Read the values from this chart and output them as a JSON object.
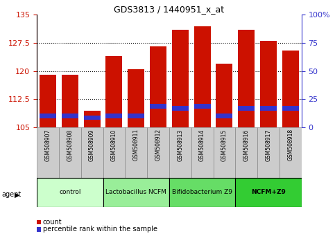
{
  "title": "GDS3813 / 1440951_x_at",
  "samples": [
    "GSM508907",
    "GSM508908",
    "GSM508909",
    "GSM508910",
    "GSM508911",
    "GSM508912",
    "GSM508913",
    "GSM508914",
    "GSM508915",
    "GSM508916",
    "GSM508917",
    "GSM508918"
  ],
  "count_values": [
    119.0,
    119.0,
    109.5,
    124.0,
    120.5,
    126.5,
    131.0,
    132.0,
    122.0,
    131.0,
    128.0,
    125.5
  ],
  "percentile_bottom": [
    107.5,
    107.5,
    107.0,
    107.5,
    107.5,
    110.0,
    109.5,
    110.0,
    107.5,
    109.5,
    109.5,
    109.5
  ],
  "percentile_height": [
    1.2,
    1.2,
    1.2,
    1.2,
    1.2,
    1.2,
    1.2,
    1.2,
    1.2,
    1.2,
    1.2,
    1.2
  ],
  "bar_base": 105,
  "ylim_left": [
    105,
    135
  ],
  "ylim_right": [
    0,
    100
  ],
  "yticks_left": [
    105,
    112.5,
    120,
    127.5,
    135
  ],
  "ytick_labels_left": [
    "105",
    "112.5",
    "120",
    "127.5",
    "135"
  ],
  "yticks_right": [
    0,
    25,
    50,
    75,
    100
  ],
  "ytick_labels_right": [
    "0",
    "25",
    "50",
    "75",
    "100%"
  ],
  "bar_color": "#cc1100",
  "blue_color": "#3333cc",
  "agent_groups": [
    {
      "label": "control",
      "start": 0,
      "end": 3,
      "color": "#ccffcc",
      "bold": false
    },
    {
      "label": "Lactobacillus NCFM",
      "start": 3,
      "end": 6,
      "color": "#99ee99",
      "bold": false
    },
    {
      "label": "Bifidobacterium Z9",
      "start": 6,
      "end": 9,
      "color": "#66dd66",
      "bold": false
    },
    {
      "label": "NCFM+Z9",
      "start": 9,
      "end": 12,
      "color": "#33cc33",
      "bold": true
    }
  ],
  "bar_width": 0.75,
  "grid_yticks": [
    112.5,
    120.0,
    127.5
  ],
  "label_bg_color": "#cccccc",
  "label_border_color": "#888888"
}
